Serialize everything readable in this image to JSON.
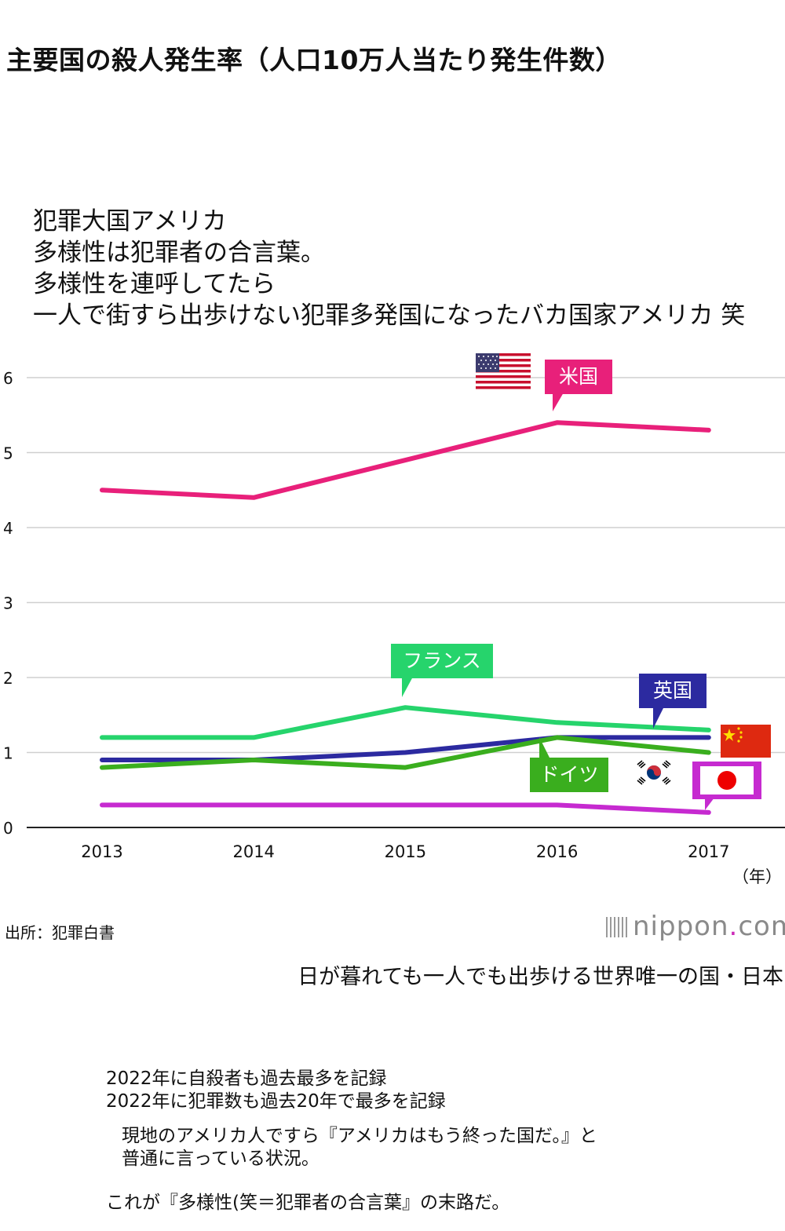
{
  "title": "主要国の殺人発生率（人口10万人当たり発生件数）",
  "overlay_text": [
    "犯罪大国アメリカ",
    "多様性は犯罪者の合言葉。",
    "多様性を連呼してたら",
    "一人で街すら出歩けない犯罪多発国になったバカ国家アメリカ 笑"
  ],
  "callouts": {
    "us": "米国",
    "france": "フランス",
    "uk": "英国",
    "germany": "ドイツ"
  },
  "flags": [
    "usa-flag",
    "china-flag",
    "korea-flag",
    "japan-flag"
  ],
  "chart_data": {
    "type": "line",
    "title": "主要国の殺人発生率（人口10万人当たり発生件数）",
    "xlabel": "（年）",
    "ylabel": "",
    "x": [
      "2013",
      "2014",
      "2015",
      "2016",
      "2017"
    ],
    "yticks": [
      "0",
      "1",
      "2",
      "3",
      "4",
      "5",
      "6"
    ],
    "ylim": [
      0,
      6.3
    ],
    "grid": true,
    "series": [
      {
        "name": "米国",
        "color": "#e8207a",
        "values": [
          4.5,
          4.4,
          4.9,
          5.4,
          5.3
        ]
      },
      {
        "name": "フランス",
        "color": "#26d46c",
        "values": [
          1.2,
          1.2,
          1.6,
          1.4,
          1.3
        ]
      },
      {
        "name": "英国",
        "color": "#2c2aa0",
        "values": [
          0.9,
          0.9,
          1.0,
          1.2,
          1.2
        ]
      },
      {
        "name": "ドイツ",
        "color": "#3aae1e",
        "values": [
          0.8,
          0.9,
          0.8,
          1.2,
          1.0
        ]
      },
      {
        "color": "#c62ad0",
        "values": [
          0.3,
          0.3,
          0.3,
          0.3,
          0.2
        ]
      }
    ]
  },
  "source": "出所：犯罪白書",
  "brand": {
    "name_a": "nippon",
    "dot": ".",
    "name_b": "com"
  },
  "tagline": "日が暮れても一人でも出歩ける世界唯一の国・日本",
  "notes": [
    "2022年に自殺者も過去最多を記録",
    "2022年に犯罪数も過去20年で最多を記録",
    "現地のアメリカ人ですら『アメリカはもう終った国だ。』と",
    "普通に言っている状況。",
    "これが『多様性(笑＝犯罪者の合言葉』の末路だ。"
  ]
}
